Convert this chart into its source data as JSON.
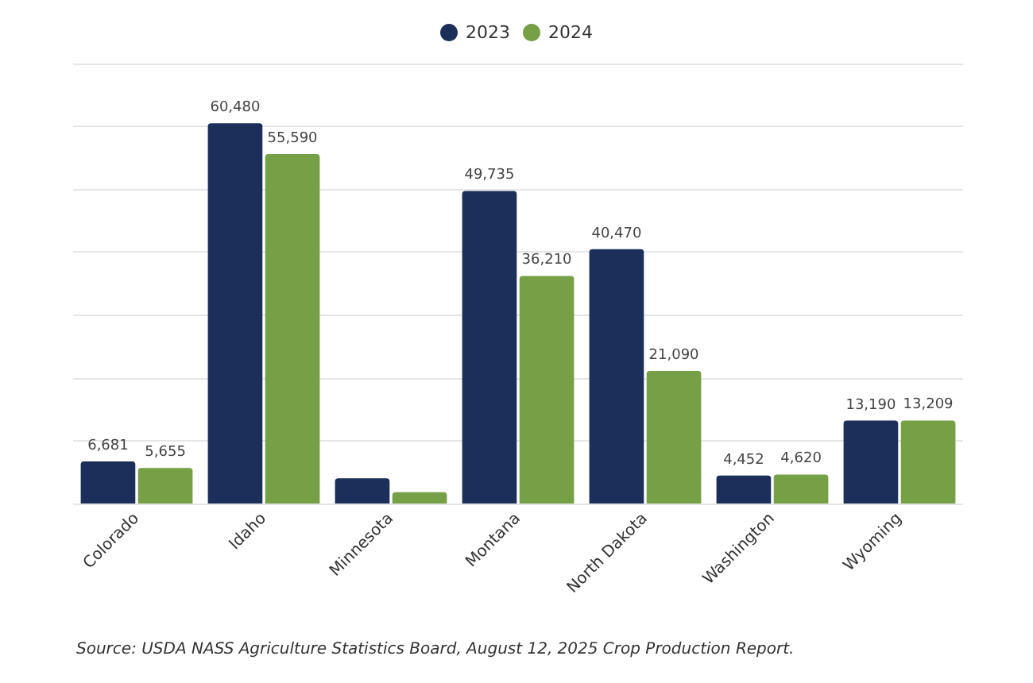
{
  "chart_data": {
    "type": "bar",
    "categories": [
      "Colorado",
      "Idaho",
      "Minnesota",
      "Montana",
      "North Dakota",
      "Washington",
      "Wyoming"
    ],
    "series": [
      {
        "name": "2023",
        "color": "#1b2f5a",
        "values": [
          6681,
          60480,
          4000,
          49735,
          40470,
          4452,
          13190
        ],
        "value_labels": [
          "6,681",
          "60,480",
          null,
          "49,735",
          "40,470",
          "4,452",
          "13,190"
        ]
      },
      {
        "name": "2024",
        "color": "#76a046",
        "values": [
          5655,
          55590,
          1800,
          36210,
          21090,
          4620,
          13209
        ],
        "value_labels": [
          "5,655",
          "55,590",
          null,
          "36,210",
          "21,090",
          "4,620",
          "13,209"
        ]
      }
    ],
    "ylim": [
      0,
      70000
    ],
    "yticks": [
      {
        "value": 0,
        "label": null
      },
      {
        "value": 10000,
        "label": null
      },
      {
        "value": 20000,
        "label": null
      },
      {
        "value": 30000,
        "label": null
      },
      {
        "value": 40000,
        "label": null
      },
      {
        "value": 50000,
        "label": null
      },
      {
        "value": 60000,
        "label": null
      },
      {
        "value": 70000,
        "label": null
      }
    ],
    "tick_labels": "x",
    "grid": "y",
    "legend": "top",
    "annotations": [
      "Source: USDA NASS Agriculture Statistics Board, August 12, 2025 Crop Production Report."
    ]
  }
}
